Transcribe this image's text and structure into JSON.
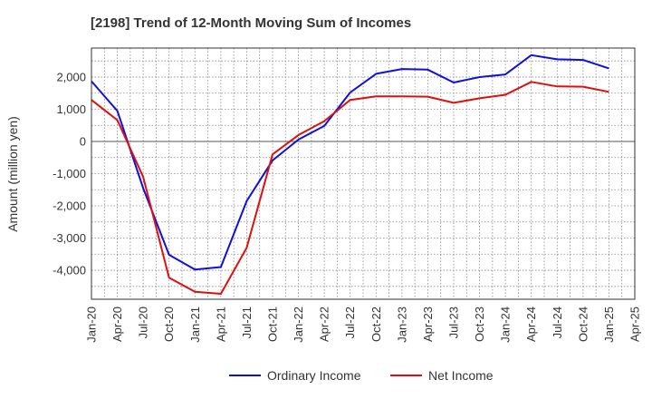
{
  "chart_data": {
    "type": "line",
    "title": "[2198]  Trend of 12-Month Moving Sum of Incomes",
    "xlabel": "",
    "ylabel": "Amount (million yen)",
    "ylim": [
      -4900,
      2900
    ],
    "yticks": [
      2000,
      1000,
      0,
      -1000,
      -2000,
      -3000,
      -4000
    ],
    "ytick_labels": [
      "2,000",
      "1,000",
      "0",
      "-1,000",
      "-2,000",
      "-3,000",
      "-4,000"
    ],
    "grid": true,
    "legend_position": "bottom",
    "categories": [
      "Jan-20",
      "Apr-20",
      "Jul-20",
      "Oct-20",
      "Jan-21",
      "Apr-21",
      "Jul-21",
      "Oct-21",
      "Jan-22",
      "Apr-22",
      "Jul-22",
      "Oct-22",
      "Jan-23",
      "Apr-23",
      "Jul-23",
      "Oct-23",
      "Jan-24",
      "Apr-24",
      "Jul-24",
      "Oct-24",
      "Jan-25",
      "Apr-25"
    ],
    "series": [
      {
        "name": "Ordinary Income",
        "color": "#1010dd",
        "values": [
          1870,
          950,
          -1450,
          -3520,
          -3980,
          -3900,
          -1850,
          -590,
          60,
          480,
          1520,
          2100,
          2250,
          2230,
          1830,
          2000,
          2080,
          2680,
          2550,
          2530,
          2270,
          null
        ]
      },
      {
        "name": "Net Income",
        "color": "#dd1010",
        "values": [
          1290,
          660,
          -1100,
          -4230,
          -4670,
          -4730,
          -3300,
          -400,
          200,
          630,
          1290,
          1400,
          1400,
          1390,
          1200,
          1340,
          1450,
          1850,
          1710,
          1700,
          1540,
          null
        ]
      }
    ]
  }
}
